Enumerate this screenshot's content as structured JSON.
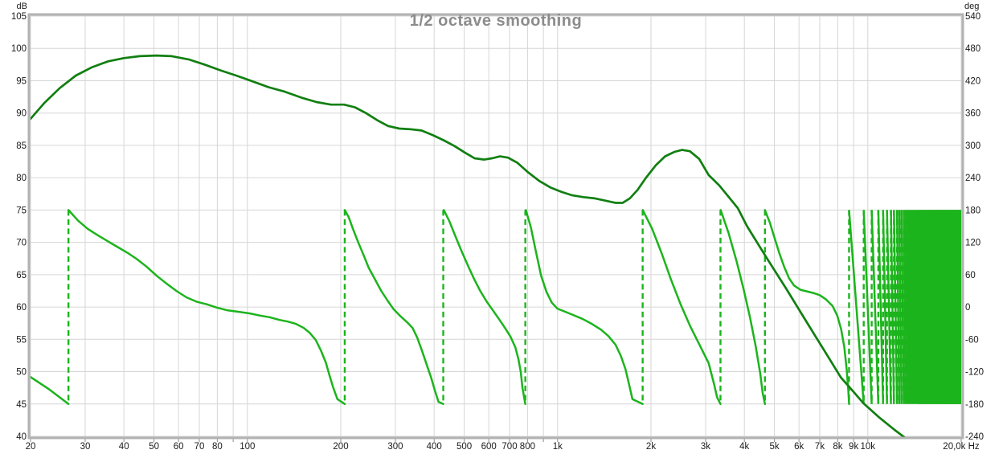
{
  "chart_data": {
    "type": "line",
    "title": "1/2 octave smoothing",
    "colors": {
      "magnitude": "#117f11",
      "phase": "#1cb41c",
      "grid": "#d6d6d6",
      "border": "#b2b2b2",
      "title": "#8c8c8c",
      "tick_text": "#1a1a1a",
      "tick_mark": "#8a8a8a",
      "background": "#ffffff"
    },
    "x_axis": {
      "scale": "log",
      "unit": "Hz",
      "min": 20,
      "max": 20000,
      "tick_labels": [
        {
          "hz": 20,
          "text": "20"
        },
        {
          "hz": 30,
          "text": "30"
        },
        {
          "hz": 40,
          "text": "40"
        },
        {
          "hz": 50,
          "text": "50"
        },
        {
          "hz": 60,
          "text": "60"
        },
        {
          "hz": 70,
          "text": "70"
        },
        {
          "hz": 80,
          "text": "80"
        },
        {
          "hz": 100,
          "text": "100"
        },
        {
          "hz": 200,
          "text": "200"
        },
        {
          "hz": 300,
          "text": "300"
        },
        {
          "hz": 400,
          "text": "400"
        },
        {
          "hz": 500,
          "text": "500"
        },
        {
          "hz": 600,
          "text": "600"
        },
        {
          "hz": 700,
          "text": "700"
        },
        {
          "hz": 800,
          "text": "800"
        },
        {
          "hz": 1000,
          "text": "1k"
        },
        {
          "hz": 2000,
          "text": "2k"
        },
        {
          "hz": 3000,
          "text": "3k"
        },
        {
          "hz": 4000,
          "text": "4k"
        },
        {
          "hz": 5000,
          "text": "5k"
        },
        {
          "hz": 6000,
          "text": "6k"
        },
        {
          "hz": 7000,
          "text": "7k"
        },
        {
          "hz": 8000,
          "text": "8k"
        },
        {
          "hz": 9000,
          "text": "9k"
        },
        {
          "hz": 10000,
          "text": "10k"
        },
        {
          "hz": 20000,
          "text": "20,0k Hz"
        }
      ]
    },
    "grid": {
      "x_freqs": [
        20,
        30,
        40,
        50,
        60,
        70,
        80,
        90,
        100,
        200,
        300,
        400,
        500,
        600,
        700,
        800,
        900,
        1000,
        2000,
        3000,
        4000,
        5000,
        6000,
        7000,
        8000,
        9000,
        10000,
        20000
      ]
    },
    "y_axis_left": {
      "unit": "dB",
      "min": 40,
      "max": 105,
      "step": 5,
      "ticks": [
        105,
        100,
        95,
        90,
        85,
        80,
        75,
        70,
        65,
        60,
        55,
        50,
        45,
        40
      ]
    },
    "y_axis_right": {
      "unit": "deg",
      "min": -240,
      "max": 540,
      "step": 60,
      "ticks": [
        540,
        480,
        420,
        360,
        300,
        240,
        180,
        120,
        60,
        0,
        -60,
        -120,
        -180,
        -240
      ]
    },
    "series": [
      {
        "name": "magnitude",
        "unit": "dB",
        "points_hz_db": [
          [
            20,
            89.1
          ],
          [
            22.2,
            91.6
          ],
          [
            24.9,
            93.9
          ],
          [
            28,
            95.8
          ],
          [
            31.6,
            97.1
          ],
          [
            35.6,
            98.0
          ],
          [
            40,
            98.5
          ],
          [
            45,
            98.8
          ],
          [
            51,
            98.9
          ],
          [
            57,
            98.8
          ],
          [
            64.6,
            98.3
          ],
          [
            72.7,
            97.5
          ],
          [
            82,
            96.6
          ],
          [
            92,
            95.8
          ],
          [
            104,
            94.9
          ],
          [
            117,
            94.0
          ],
          [
            132,
            93.3
          ],
          [
            149,
            92.4
          ],
          [
            167,
            91.7
          ],
          [
            186,
            91.3
          ],
          [
            205,
            91.3
          ],
          [
            222,
            90.9
          ],
          [
            241,
            90.0
          ],
          [
            262,
            88.9
          ],
          [
            284,
            88.0
          ],
          [
            309,
            87.6
          ],
          [
            335,
            87.5
          ],
          [
            364,
            87.3
          ],
          [
            395,
            86.6
          ],
          [
            429,
            85.8
          ],
          [
            465,
            84.9
          ],
          [
            502,
            83.9
          ],
          [
            540,
            83.0
          ],
          [
            580,
            82.8
          ],
          [
            615,
            83.0
          ],
          [
            652,
            83.3
          ],
          [
            692,
            83.1
          ],
          [
            742,
            82.3
          ],
          [
            805,
            80.8
          ],
          [
            873,
            79.5
          ],
          [
            947,
            78.5
          ],
          [
            1030,
            77.8
          ],
          [
            1110,
            77.3
          ],
          [
            1210,
            77.0
          ],
          [
            1320,
            76.8
          ],
          [
            1440,
            76.4
          ],
          [
            1540,
            76.1
          ],
          [
            1620,
            76.1
          ],
          [
            1710,
            76.8
          ],
          [
            1810,
            78.1
          ],
          [
            1920,
            79.9
          ],
          [
            2070,
            81.9
          ],
          [
            2220,
            83.3
          ],
          [
            2380,
            84.0
          ],
          [
            2520,
            84.3
          ],
          [
            2670,
            84.1
          ],
          [
            2860,
            82.9
          ],
          [
            3070,
            80.4
          ],
          [
            3320,
            78.8
          ],
          [
            3550,
            77.1
          ],
          [
            3810,
            75.3
          ],
          [
            4080,
            72.5
          ],
          [
            4720,
            67.6
          ],
          [
            5460,
            62.8
          ],
          [
            6310,
            57.9
          ],
          [
            7300,
            53.0
          ],
          [
            8190,
            49.1
          ],
          [
            8910,
            47.1
          ],
          [
            9690,
            45.1
          ],
          [
            10900,
            42.9
          ],
          [
            12200,
            41.0
          ],
          [
            13500,
            39.4
          ]
        ]
      },
      {
        "name": "phase-wrapped",
        "unit": "deg",
        "wraps_hz": [
          26.5,
          206,
          428,
          787,
          1880,
          3350,
          4660,
          8700
        ],
        "dense_wraps_hz": [
          9700,
          10290,
          10810,
          11200,
          11530,
          11870,
          12140,
          12420,
          12630,
          12840,
          13060,
          13240,
          13430,
          13580,
          13730
        ],
        "solid_block": {
          "from_hz": 14500,
          "to_hz": 20000,
          "deg_top": 180,
          "deg_bottom": -180
        },
        "segments_hz_deg": [
          [
            [
              20,
              -130
            ],
            [
              23,
              -153
            ],
            [
              26.5,
              -180
            ]
          ],
          [
            [
              26.5,
              180
            ],
            [
              28.5,
              160
            ],
            [
              30.6,
              145
            ],
            [
              33,
              133
            ],
            [
              35.5,
              122
            ],
            [
              38,
              112
            ],
            [
              41,
              101
            ],
            [
              44,
              89
            ],
            [
              47.3,
              75
            ],
            [
              51,
              58
            ],
            [
              55,
              43
            ],
            [
              59,
              30
            ],
            [
              63.6,
              18
            ],
            [
              68.5,
              10
            ],
            [
              74,
              5
            ],
            [
              79.5,
              -1
            ],
            [
              86,
              -6
            ],
            [
              94,
              -9
            ],
            [
              102,
              -12
            ],
            [
              110,
              -16
            ],
            [
              118,
              -19
            ],
            [
              127,
              -24
            ],
            [
              135,
              -27
            ],
            [
              143,
              -31
            ],
            [
              152,
              -39
            ],
            [
              159,
              -48
            ],
            [
              166,
              -61
            ],
            [
              173,
              -82
            ],
            [
              179,
              -103
            ],
            [
              184,
              -127
            ],
            [
              189,
              -149
            ],
            [
              195,
              -171
            ],
            [
              206,
              -180
            ]
          ],
          [
            [
              206,
              180
            ],
            [
              212,
              167
            ],
            [
              219,
              145
            ],
            [
              228,
              119
            ],
            [
              237,
              96
            ],
            [
              246,
              73
            ],
            [
              258,
              51
            ],
            [
              270,
              30
            ],
            [
              283,
              12
            ],
            [
              296,
              -4
            ],
            [
              310,
              -16
            ],
            [
              327,
              -28
            ],
            [
              341,
              -39
            ],
            [
              353,
              -57
            ],
            [
              365,
              -80
            ],
            [
              378,
              -106
            ],
            [
              391,
              -131
            ],
            [
              403,
              -157
            ],
            [
              413,
              -176
            ],
            [
              428,
              -180
            ]
          ],
          [
            [
              430,
              180
            ],
            [
              448,
              159
            ],
            [
              468,
              132
            ],
            [
              490,
              104
            ],
            [
              513,
              78
            ],
            [
              538,
              52
            ],
            [
              563,
              30
            ],
            [
              591,
              10
            ],
            [
              620,
              -7
            ],
            [
              650,
              -24
            ],
            [
              677,
              -39
            ],
            [
              705,
              -55
            ],
            [
              731,
              -75
            ],
            [
              748,
              -97
            ],
            [
              761,
              -121
            ],
            [
              770,
              -149
            ],
            [
              787,
              -180
            ]
          ],
          [
            [
              790,
              180
            ],
            [
              820,
              148
            ],
            [
              851,
              103
            ],
            [
              885,
              58
            ],
            [
              921,
              28
            ],
            [
              958,
              8
            ],
            [
              999,
              -3
            ],
            [
              1060,
              -9
            ],
            [
              1124,
              -15
            ],
            [
              1202,
              -22
            ],
            [
              1287,
              -31
            ],
            [
              1379,
              -42
            ],
            [
              1459,
              -54
            ],
            [
              1537,
              -70
            ],
            [
              1600,
              -91
            ],
            [
              1656,
              -116
            ],
            [
              1704,
              -146
            ],
            [
              1743,
              -171
            ],
            [
              1880,
              -180
            ]
          ],
          [
            [
              1882,
              180
            ],
            [
              2018,
              145
            ],
            [
              2164,
              100
            ],
            [
              2320,
              51
            ],
            [
              2488,
              6
            ],
            [
              2668,
              -34
            ],
            [
              2861,
              -69
            ],
            [
              3067,
              -104
            ],
            [
              3194,
              -143
            ],
            [
              3268,
              -168
            ],
            [
              3350,
              -180
            ]
          ],
          [
            [
              3355,
              180
            ],
            [
              3559,
              137
            ],
            [
              3775,
              85
            ],
            [
              3982,
              32
            ],
            [
              4174,
              -20
            ],
            [
              4349,
              -72
            ],
            [
              4502,
              -124
            ],
            [
              4581,
              -159
            ],
            [
              4660,
              -180
            ]
          ],
          [
            [
              4660,
              180
            ],
            [
              4830,
              157
            ],
            [
              5007,
              128
            ],
            [
              5190,
              99
            ],
            [
              5380,
              74
            ],
            [
              5577,
              53
            ],
            [
              5782,
              40
            ],
            [
              6064,
              32
            ],
            [
              6360,
              29
            ],
            [
              6670,
              26
            ],
            [
              6995,
              22
            ],
            [
              7336,
              14
            ],
            [
              7694,
              2
            ],
            [
              7971,
              -16
            ],
            [
              8207,
              -42
            ],
            [
              8401,
              -75
            ],
            [
              8549,
              -116
            ],
            [
              8648,
              -154
            ],
            [
              8700,
              -180
            ]
          ]
        ]
      }
    ]
  }
}
